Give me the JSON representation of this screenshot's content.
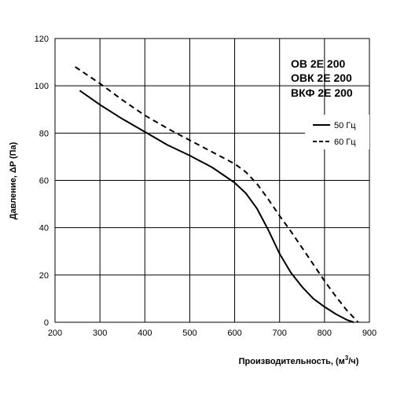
{
  "chart_data": {
    "type": "line",
    "xlabel": "Производительность, (м³/ч)",
    "xlabel_main": "Производительность, (м",
    "xlabel_sup": "3",
    "xlabel_tail": "/ч)",
    "ylabel": "Давление, ΔP (Па)",
    "xlim": [
      200,
      900
    ],
    "ylim": [
      0,
      120
    ],
    "xticks": [
      200,
      300,
      400,
      500,
      600,
      700,
      800,
      900
    ],
    "yticks": [
      0,
      20,
      40,
      60,
      80,
      100,
      120
    ],
    "grid": true,
    "legend_position": "right",
    "models": [
      "ОВ 2Е 200",
      "ОВК 2Е 200",
      "ВКФ 2Е 200"
    ],
    "series": [
      {
        "name": "50 Гц",
        "style": "solid",
        "x": [
          255,
          300,
          350,
          400,
          450,
          500,
          550,
          600,
          625,
          650,
          675,
          700,
          725,
          750,
          775,
          800,
          825,
          850,
          865
        ],
        "y": [
          98,
          92,
          86,
          80.5,
          75,
          70.5,
          65.5,
          59,
          54.5,
          48,
          39,
          29,
          21,
          15,
          10,
          6.5,
          3.5,
          1,
          0
        ]
      },
      {
        "name": "60 Гц",
        "style": "dashed",
        "x": [
          245,
          300,
          350,
          400,
          450,
          500,
          550,
          600,
          625,
          650,
          675,
          700,
          725,
          750,
          775,
          800,
          825,
          850,
          875
        ],
        "y": [
          108,
          101,
          94,
          87.5,
          82,
          77,
          72,
          67,
          63.5,
          58.5,
          52,
          45,
          38.5,
          31.5,
          24.5,
          17.5,
          11,
          5,
          0
        ]
      }
    ]
  }
}
